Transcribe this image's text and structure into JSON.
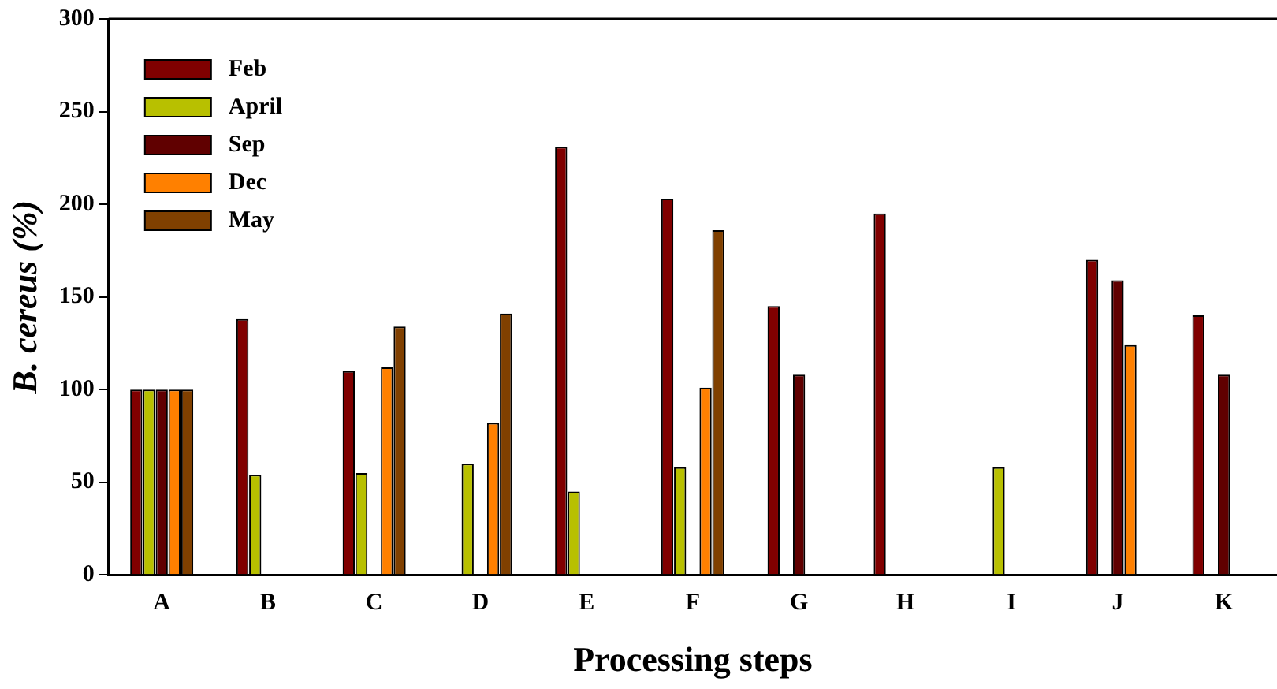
{
  "chart_data": {
    "type": "bar",
    "xlabel": "Processing steps",
    "ylabel": "B. cereus (%)",
    "categories": [
      "A",
      "B",
      "C",
      "D",
      "E",
      "F",
      "G",
      "H",
      "I",
      "J",
      "K"
    ],
    "series": [
      {
        "name": "Feb",
        "color": "#800000",
        "values": [
          100,
          138,
          110,
          null,
          231,
          203,
          145,
          195,
          null,
          170,
          140
        ]
      },
      {
        "name": "April",
        "color": "#b8c000",
        "values": [
          100,
          54,
          55,
          60,
          45,
          58,
          null,
          null,
          58,
          null,
          null
        ]
      },
      {
        "name": "Sep",
        "color": "#600000",
        "values": [
          100,
          null,
          null,
          null,
          null,
          null,
          108,
          null,
          null,
          159,
          108
        ]
      },
      {
        "name": "Dec",
        "color": "#ff8000",
        "values": [
          100,
          null,
          112,
          82,
          null,
          101,
          null,
          null,
          null,
          124,
          null
        ]
      },
      {
        "name": "May",
        "color": "#804000",
        "values": [
          100,
          null,
          134,
          141,
          null,
          186,
          null,
          null,
          null,
          null,
          null
        ]
      }
    ],
    "ylim": [
      0,
      300
    ],
    "yticks": [
      0,
      50,
      100,
      150,
      200,
      250,
      300
    ],
    "grid": false,
    "legend": "top left"
  }
}
